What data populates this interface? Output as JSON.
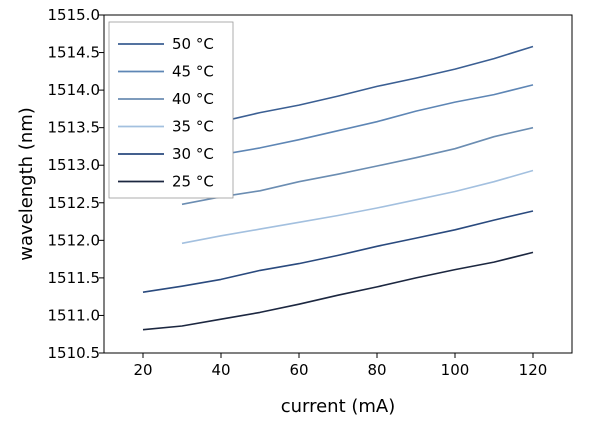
{
  "chart_data": {
    "type": "line",
    "title": "",
    "xlabel": "current (mA)",
    "ylabel": "wavelength (nm)",
    "xlim": [
      10,
      130
    ],
    "ylim": [
      1510.5,
      1515.0
    ],
    "xticks": [
      20,
      40,
      60,
      80,
      100,
      120
    ],
    "yticks": [
      1510.5,
      1511.0,
      1511.5,
      1512.0,
      1512.5,
      1513.0,
      1513.5,
      1514.0,
      1514.5,
      1515.0
    ],
    "xtick_labels": [
      "20",
      "40",
      "60",
      "80",
      "100",
      "120"
    ],
    "ytick_labels": [
      "1510.5",
      "1511.0",
      "1511.5",
      "1512.0",
      "1512.5",
      "1513.0",
      "1513.5",
      "1514.0",
      "1514.5",
      "1515.0"
    ],
    "grid": false,
    "legend_position": "top-left",
    "series": [
      {
        "name": "50 °C",
        "color": "#3b5f93",
        "x": [
          40,
          50,
          60,
          70,
          80,
          90,
          100,
          110,
          120
        ],
        "y": [
          1513.58,
          1513.7,
          1513.8,
          1513.92,
          1514.05,
          1514.16,
          1514.28,
          1514.42,
          1514.58
        ]
      },
      {
        "name": "45 °C",
        "color": "#5e86b5",
        "x": [
          40,
          50,
          60,
          70,
          80,
          90,
          100,
          110,
          120
        ],
        "y": [
          1513.14,
          1513.23,
          1513.34,
          1513.46,
          1513.58,
          1513.72,
          1513.84,
          1513.94,
          1514.07
        ]
      },
      {
        "name": "40 °C",
        "color": "#6b8db2",
        "x": [
          30,
          40,
          50,
          60,
          70,
          80,
          90,
          100,
          110,
          120
        ],
        "y": [
          1512.48,
          1512.58,
          1512.66,
          1512.78,
          1512.88,
          1512.99,
          1513.1,
          1513.22,
          1513.38,
          1513.5
        ]
      },
      {
        "name": "35 °C",
        "color": "#a3c0df",
        "x": [
          30,
          40,
          50,
          60,
          70,
          80,
          90,
          100,
          110,
          120
        ],
        "y": [
          1511.96,
          1512.06,
          1512.15,
          1512.24,
          1512.33,
          1512.43,
          1512.54,
          1512.65,
          1512.78,
          1512.93
        ]
      },
      {
        "name": "30 °C",
        "color": "#2a4a7e",
        "x": [
          20,
          30,
          40,
          50,
          60,
          70,
          80,
          90,
          100,
          110,
          120
        ],
        "y": [
          1511.31,
          1511.39,
          1511.48,
          1511.6,
          1511.69,
          1511.8,
          1511.92,
          1512.03,
          1512.14,
          1512.27,
          1512.39
        ]
      },
      {
        "name": "25 °C",
        "color": "#1c2740",
        "x": [
          20,
          30,
          40,
          50,
          60,
          70,
          80,
          90,
          100,
          110,
          120
        ],
        "y": [
          1510.81,
          1510.86,
          1510.95,
          1511.04,
          1511.15,
          1511.27,
          1511.38,
          1511.5,
          1511.61,
          1511.71,
          1511.84
        ]
      }
    ]
  }
}
